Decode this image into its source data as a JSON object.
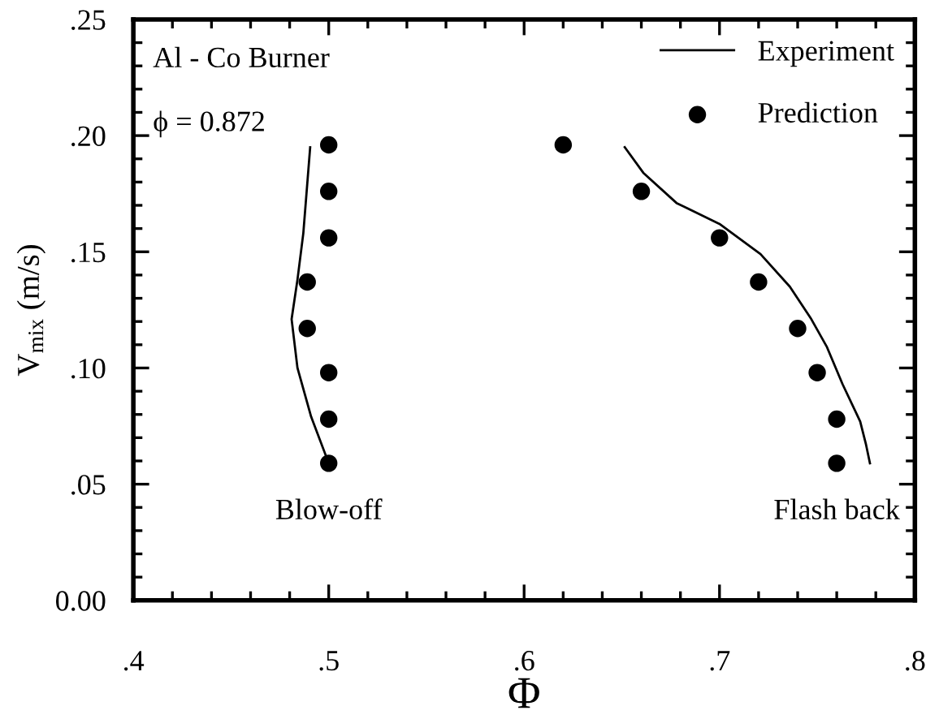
{
  "chart_data": {
    "type": "scatter",
    "xlabel": "Φ",
    "ylabel": "V$_{mix}$ (m/s)",
    "annotations": [
      "Al - Co Burner",
      "ϕ = 0.872",
      "Blow-off",
      "Flash back"
    ],
    "xlim": [
      0.4,
      0.8
    ],
    "ylim": [
      0,
      0.25
    ],
    "xticks": [
      {
        "value": 0.4,
        "label": ".4"
      },
      {
        "value": 0.42,
        "label": null
      },
      {
        "value": 0.44,
        "label": null
      },
      {
        "value": 0.46,
        "label": null
      },
      {
        "value": 0.48,
        "label": null
      },
      {
        "value": 0.5,
        "label": ".5"
      },
      {
        "value": 0.52,
        "label": null
      },
      {
        "value": 0.54,
        "label": null
      },
      {
        "value": 0.56,
        "label": null
      },
      {
        "value": 0.58,
        "label": null
      },
      {
        "value": 0.6,
        "label": ".6"
      },
      {
        "value": 0.62,
        "label": null
      },
      {
        "value": 0.64,
        "label": null
      },
      {
        "value": 0.66,
        "label": null
      },
      {
        "value": 0.68,
        "label": null
      },
      {
        "value": 0.7,
        "label": ".7"
      },
      {
        "value": 0.72,
        "label": null
      },
      {
        "value": 0.74,
        "label": null
      },
      {
        "value": 0.76,
        "label": null
      },
      {
        "value": 0.78,
        "label": null
      },
      {
        "value": 0.8,
        "label": ".8"
      }
    ],
    "yticks": [
      {
        "value": 0,
        "label": "0.00"
      },
      {
        "value": 0.01,
        "label": null
      },
      {
        "value": 0.02,
        "label": null
      },
      {
        "value": 0.03,
        "label": null
      },
      {
        "value": 0.04,
        "label": null
      },
      {
        "value": 0.05,
        "label": ".05"
      },
      {
        "value": 0.06,
        "label": null
      },
      {
        "value": 0.07,
        "label": null
      },
      {
        "value": 0.08,
        "label": null
      },
      {
        "value": 0.09,
        "label": null
      },
      {
        "value": 0.1,
        "label": ".10"
      },
      {
        "value": 0.11,
        "label": null
      },
      {
        "value": 0.12,
        "label": null
      },
      {
        "value": 0.13,
        "label": null
      },
      {
        "value": 0.14,
        "label": null
      },
      {
        "value": 0.15,
        "label": ".15"
      },
      {
        "value": 0.16,
        "label": null
      },
      {
        "value": 0.17,
        "label": null
      },
      {
        "value": 0.18,
        "label": null
      },
      {
        "value": 0.19,
        "label": null
      },
      {
        "value": 0.2,
        "label": ".20"
      },
      {
        "value": 0.21,
        "label": null
      },
      {
        "value": 0.22,
        "label": null
      },
      {
        "value": 0.23,
        "label": null
      },
      {
        "value": 0.24,
        "label": null
      },
      {
        "value": 0.25,
        "label": ".25"
      }
    ],
    "grid": false,
    "legend": "top right",
    "series": [
      {
        "name": "Experiment",
        "type": "line",
        "color": "#000000",
        "line_style": "solid",
        "marker": "none",
        "x": [
          0.5,
          0.491,
          0.484,
          0.481,
          0.484,
          0.487,
          0.4905
        ],
        "values": [
          0.059,
          0.079,
          0.1,
          0.121,
          0.138,
          0.158,
          0.195
        ]
      },
      {
        "type": "line",
        "color": "#000000",
        "line_style": "solid",
        "marker": "none",
        "x": [
          0.777,
          0.775,
          0.772,
          0.763,
          0.755,
          0.747,
          0.736,
          0.721,
          0.7,
          0.678,
          0.661,
          0.6515
        ],
        "values": [
          0.059,
          0.067,
          0.077,
          0.093,
          0.109,
          0.121,
          0.135,
          0.149,
          0.162,
          0.171,
          0.184,
          0.195
        ]
      },
      {
        "name": "Prediction",
        "color": "#000000",
        "marker": "circle",
        "x": [
          0.5,
          0.5,
          0.5,
          0.489,
          0.489,
          0.5,
          0.5,
          0.5,
          0.76,
          0.76,
          0.75,
          0.74,
          0.72,
          0.7,
          0.66,
          0.62
        ],
        "values": [
          0.059,
          0.078,
          0.098,
          0.117,
          0.137,
          0.156,
          0.176,
          0.196,
          0.059,
          0.078,
          0.098,
          0.117,
          0.137,
          0.156,
          0.176,
          0.196
        ]
      }
    ]
  }
}
